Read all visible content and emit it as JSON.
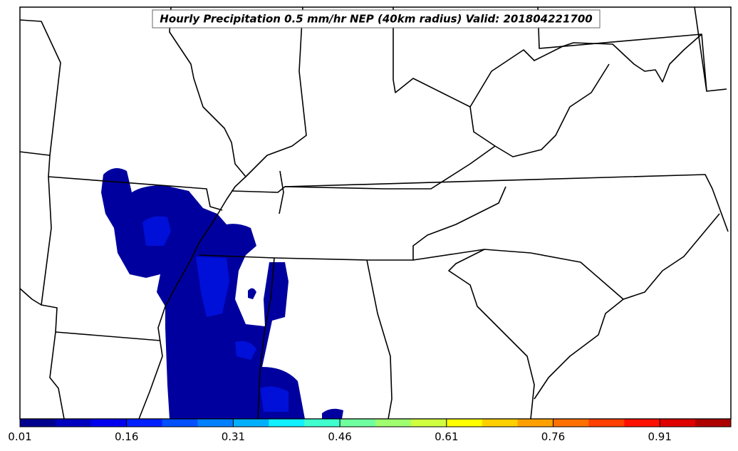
{
  "title": "Hourly Precipitation 0.5 mm/hr NEP (40km radius) Valid: 201804221700",
  "colorbar": {
    "lim": [
      0.01,
      1.01
    ],
    "ticks": [
      0.01,
      0.16,
      0.31,
      0.46,
      0.61,
      0.76,
      0.91
    ],
    "colors": [
      "#00008f",
      "#0000bf",
      "#0000ef",
      "#0020ff",
      "#0050ff",
      "#0080ff",
      "#00b0ff",
      "#10f0ff",
      "#40ffcf",
      "#70ff9f",
      "#a0ff6f",
      "#d0ff3f",
      "#ffff00",
      "#ffd000",
      "#ffa000",
      "#ff7000",
      "#ff4000",
      "#ff1000",
      "#df0000",
      "#af0000"
    ]
  }
}
